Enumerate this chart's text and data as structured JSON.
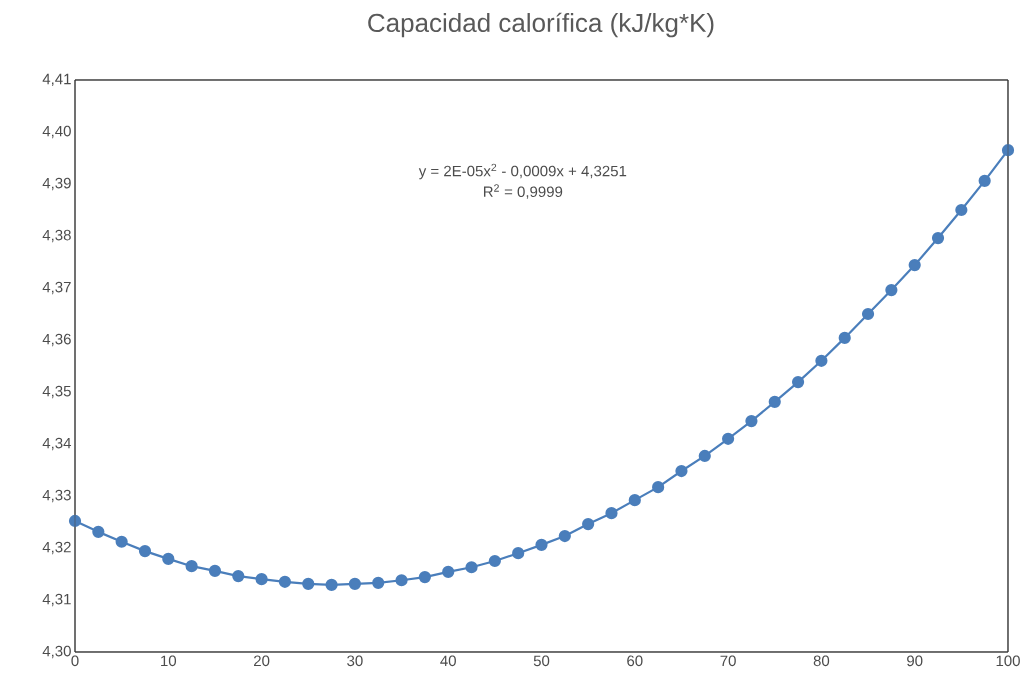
{
  "chart_data": {
    "type": "line",
    "title": "Capacidad calorífica (kJ/kg*K)",
    "x": [
      0,
      2.5,
      5,
      7.5,
      10,
      12.5,
      15,
      17.5,
      20,
      22.5,
      25,
      27.5,
      30,
      32.5,
      35,
      37.5,
      40,
      42.5,
      45,
      47.5,
      50,
      52.5,
      55,
      57.5,
      60,
      62.5,
      65,
      67.5,
      70,
      72.5,
      75,
      77.5,
      80,
      82.5,
      85,
      87.5,
      90,
      92.5,
      95,
      97.5,
      100
    ],
    "values": [
      4.3252,
      4.3231,
      4.3212,
      4.3194,
      4.3179,
      4.3165,
      4.3156,
      4.3146,
      4.314,
      4.3135,
      4.3131,
      4.3129,
      4.3131,
      4.3133,
      4.3138,
      4.3144,
      4.3154,
      4.3163,
      4.3175,
      4.319,
      4.3206,
      4.3223,
      4.3246,
      4.3267,
      4.3292,
      4.3317,
      4.3348,
      4.3377,
      4.341,
      4.3444,
      4.3481,
      4.3519,
      4.356,
      4.3604,
      4.365,
      4.3696,
      4.3744,
      4.3796,
      4.385,
      4.3906,
      4.3965
    ],
    "color": "#4a7ebb",
    "marker": "circle",
    "line_style": "solid",
    "xlim": [
      0,
      100
    ],
    "xticks": [
      0,
      10,
      20,
      30,
      40,
      50,
      60,
      70,
      80,
      90,
      100
    ],
    "ylim": [
      4.3,
      4.41
    ],
    "yticks": [
      {
        "value": 4.3,
        "label": "4,30"
      },
      {
        "value": 4.31,
        "label": "4,31"
      },
      {
        "value": 4.32,
        "label": "4,32"
      },
      {
        "value": 4.33,
        "label": "4,33"
      },
      {
        "value": 4.34,
        "label": "4,34"
      },
      {
        "value": 4.35,
        "label": "4,35"
      },
      {
        "value": 4.36,
        "label": "4,36"
      },
      {
        "value": 4.37,
        "label": "4,37"
      },
      {
        "value": 4.38,
        "label": "4,38"
      },
      {
        "value": 4.39,
        "label": "4,39"
      },
      {
        "value": 4.4,
        "label": "4,40"
      },
      {
        "value": 4.41,
        "label": "4,41"
      }
    ],
    "annotations": [
      "y = 2E-05x$^{2}$ - 0,0009x + 4,3251",
      "R$^{2}$ = 0,9999"
    ]
  }
}
